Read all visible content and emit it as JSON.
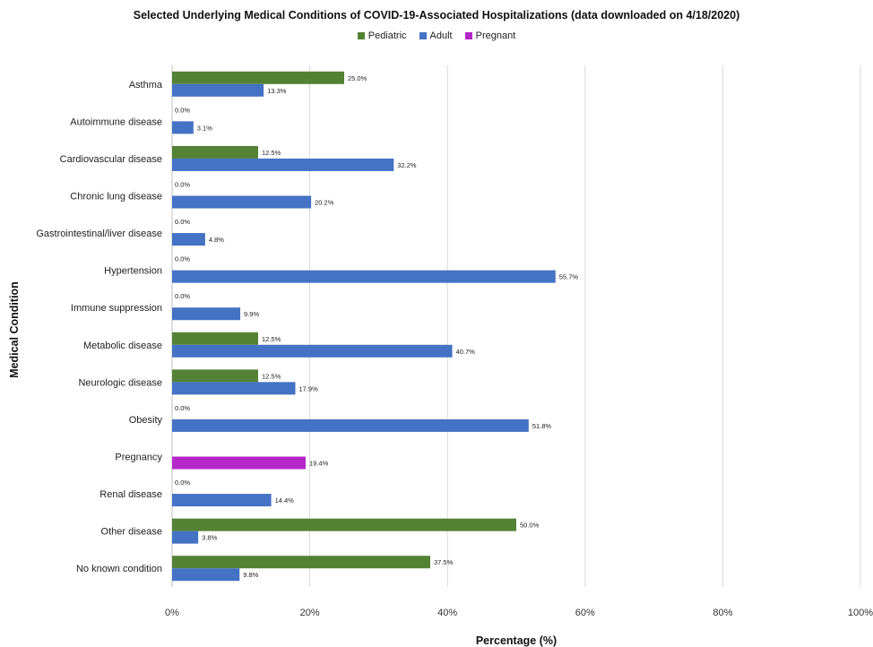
{
  "chart_data": {
    "type": "bar",
    "orientation": "horizontal",
    "title": "Selected Underlying Medical Conditions of COVID-19-Associated Hospitalizations (data downloaded on 4/18/2020)",
    "xlabel": "Percentage (%)",
    "ylabel": "Medical Condition",
    "xlim": [
      0,
      100
    ],
    "xticks": [
      "0%",
      "20%",
      "40%",
      "60%",
      "80%",
      "100%"
    ],
    "grid": true,
    "legend_position": "top",
    "categories": [
      "Asthma",
      "Autoimmune disease",
      "Cardiovascular disease",
      "Chronic lung disease",
      "Gastrointestinal/liver disease",
      "Hypertension",
      "Immune suppression",
      "Metabolic disease",
      "Neurologic disease",
      "Obesity",
      "Pregnancy",
      "Renal disease",
      "Other disease",
      "No known condition"
    ],
    "series": [
      {
        "name": "Pediatric",
        "color": "#548235",
        "values": [
          25.0,
          0.0,
          12.5,
          0.0,
          0.0,
          0.0,
          0.0,
          12.5,
          12.5,
          0.0,
          null,
          0.0,
          50.0,
          37.5
        ],
        "labels": [
          "25.0%",
          "0.0%",
          "12.5%",
          "0.0%",
          "0.0%",
          "0.0%",
          "0.0%",
          "12.5%",
          "12.5%",
          "0.0%",
          null,
          "0.0%",
          "50.0%",
          "37.5%"
        ]
      },
      {
        "name": "Adult",
        "color": "#4472C4",
        "values": [
          13.3,
          3.1,
          32.2,
          20.2,
          4.8,
          55.7,
          9.9,
          40.7,
          17.9,
          51.8,
          null,
          14.4,
          3.8,
          9.8
        ],
        "labels": [
          "13.3%",
          "3.1%",
          "32.2%",
          "20.2%",
          "4.8%",
          "55.7%",
          "9.9%",
          "40.7%",
          "17.9%",
          "51.8%",
          null,
          "14.4%",
          "3.8%",
          "9.8%"
        ]
      },
      {
        "name": "Pregnant",
        "color": "#B327C8",
        "values": [
          null,
          null,
          null,
          null,
          null,
          null,
          null,
          null,
          null,
          null,
          19.4,
          null,
          null,
          null
        ],
        "labels": [
          null,
          null,
          null,
          null,
          null,
          null,
          null,
          null,
          null,
          null,
          "19.4%",
          null,
          null,
          null
        ]
      }
    ]
  }
}
